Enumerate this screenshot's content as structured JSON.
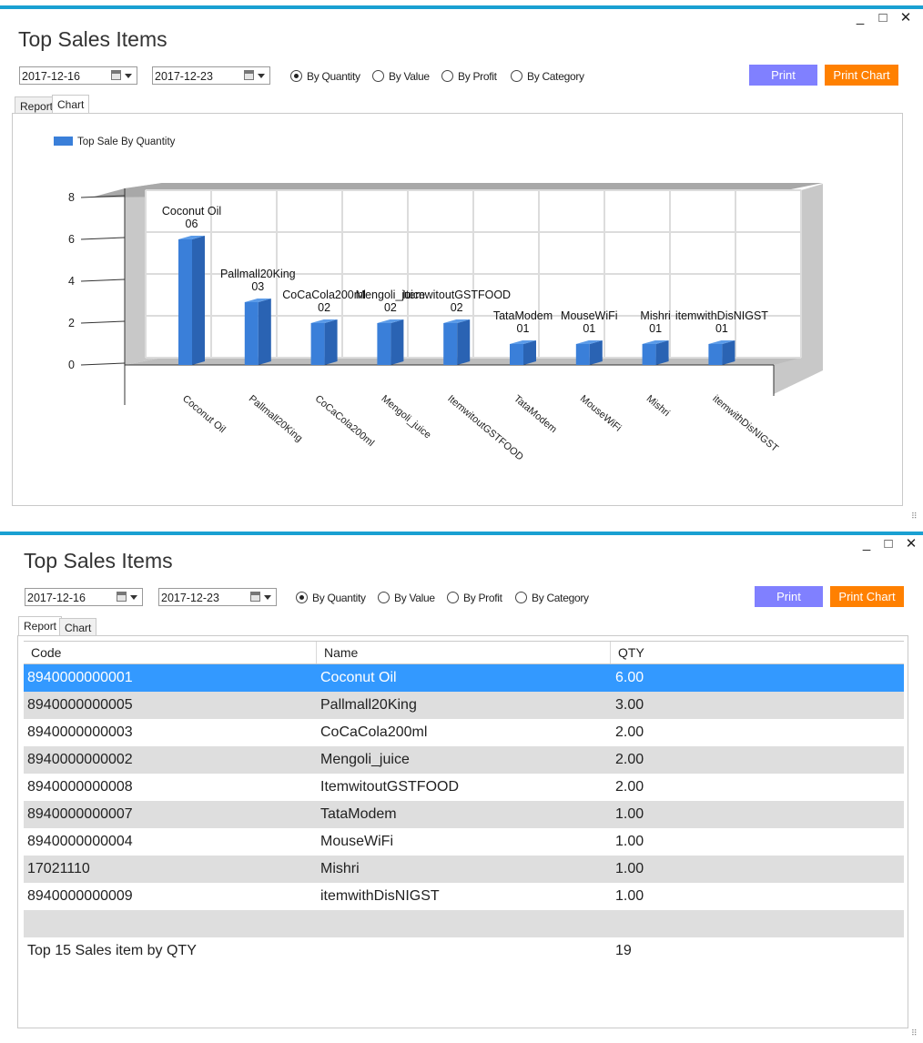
{
  "window_controls": {
    "minimize": "_",
    "maximize": "□",
    "close": "✕"
  },
  "title": "Top Sales Items",
  "date_from": "2017-12-16",
  "date_to": "2017-12-23",
  "radios": [
    {
      "label": "By Quantity",
      "checked": true
    },
    {
      "label": "By Value",
      "checked": false
    },
    {
      "label": "By Profit",
      "checked": false
    },
    {
      "label": "By Category",
      "checked": false
    }
  ],
  "buttons": {
    "print": "Print",
    "print_chart": "Print Chart"
  },
  "tabs": {
    "report": "Report",
    "chart": "Chart"
  },
  "colors": {
    "accent": "#1aa0d2",
    "print": "#8080ff",
    "print_chart": "#ff8000",
    "bar": "#3a7fd9",
    "selected_row": "#3399ff"
  },
  "chart_data": {
    "type": "bar",
    "legend": "Top Sale By Quantity",
    "categories": [
      "Coconut Oil",
      "Pallmall20King",
      "CoCaCola200ml",
      "Mengoli_juice",
      "ItemwitoutGSTFOOD",
      "TataModem",
      "MouseWiFi",
      "Mishri",
      "itemwithDisNIGST"
    ],
    "values": [
      6,
      3,
      2,
      2,
      2,
      1,
      1,
      1,
      1
    ],
    "data_labels": [
      "06",
      "03",
      "02",
      "02",
      "02",
      "01",
      "01",
      "01",
      "01"
    ],
    "yticks": [
      "0",
      "2",
      "4",
      "6",
      "8"
    ],
    "ylim": [
      0,
      8
    ],
    "grid": true,
    "legend_position": "top-left"
  },
  "table": {
    "columns": [
      "Code",
      "Name",
      "QTY"
    ],
    "rows": [
      {
        "code": "8940000000001",
        "name": "Coconut Oil",
        "qty": "6.00"
      },
      {
        "code": "8940000000005",
        "name": "Pallmall20King",
        "qty": "3.00"
      },
      {
        "code": "8940000000003",
        "name": "CoCaCola200ml",
        "qty": "2.00"
      },
      {
        "code": "8940000000002",
        "name": "Mengoli_juice",
        "qty": "2.00"
      },
      {
        "code": "8940000000008",
        "name": "ItemwitoutGSTFOOD",
        "qty": "2.00"
      },
      {
        "code": "8940000000007",
        "name": "TataModem",
        "qty": "1.00"
      },
      {
        "code": "8940000000004",
        "name": "MouseWiFi",
        "qty": "1.00"
      },
      {
        "code": "17021110",
        "name": "Mishri",
        "qty": "1.00"
      },
      {
        "code": "8940000000009",
        "name": "itemwithDisNIGST",
        "qty": "1.00"
      }
    ],
    "footer_label": "Top 15 Sales item by QTY",
    "footer_total": "19"
  }
}
